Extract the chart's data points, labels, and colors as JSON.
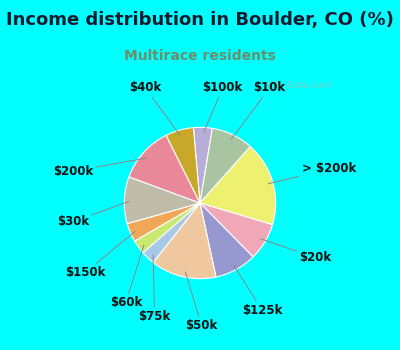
{
  "title": "Income distribution in Boulder, CO (%)",
  "subtitle": "Multirace residents",
  "title_color": "#1a1a2e",
  "subtitle_color": "#6b8e6b",
  "bg_color": "#00ffff",
  "chart_bg_color": "#d8ede0",
  "watermark": "City-Data.com",
  "labels": [
    "$100k",
    "$10k",
    "> $200k",
    "$20k",
    "$125k",
    "$50k",
    "$75k",
    "$60k",
    "$150k",
    "$30k",
    "$200k",
    "$40k"
  ],
  "values": [
    4,
    9,
    18,
    8,
    9,
    14,
    3,
    3,
    4,
    10,
    12,
    6
  ],
  "colors": [
    "#b8acd8",
    "#a8c4a0",
    "#eef070",
    "#f0a8b8",
    "#9898d0",
    "#f0c8a0",
    "#a8c8e8",
    "#c8e870",
    "#f0a858",
    "#c0bcaa",
    "#e88898",
    "#c8a828"
  ],
  "startangle": 95,
  "label_fontsize": 8.5,
  "title_fontsize": 13,
  "subtitle_fontsize": 10
}
